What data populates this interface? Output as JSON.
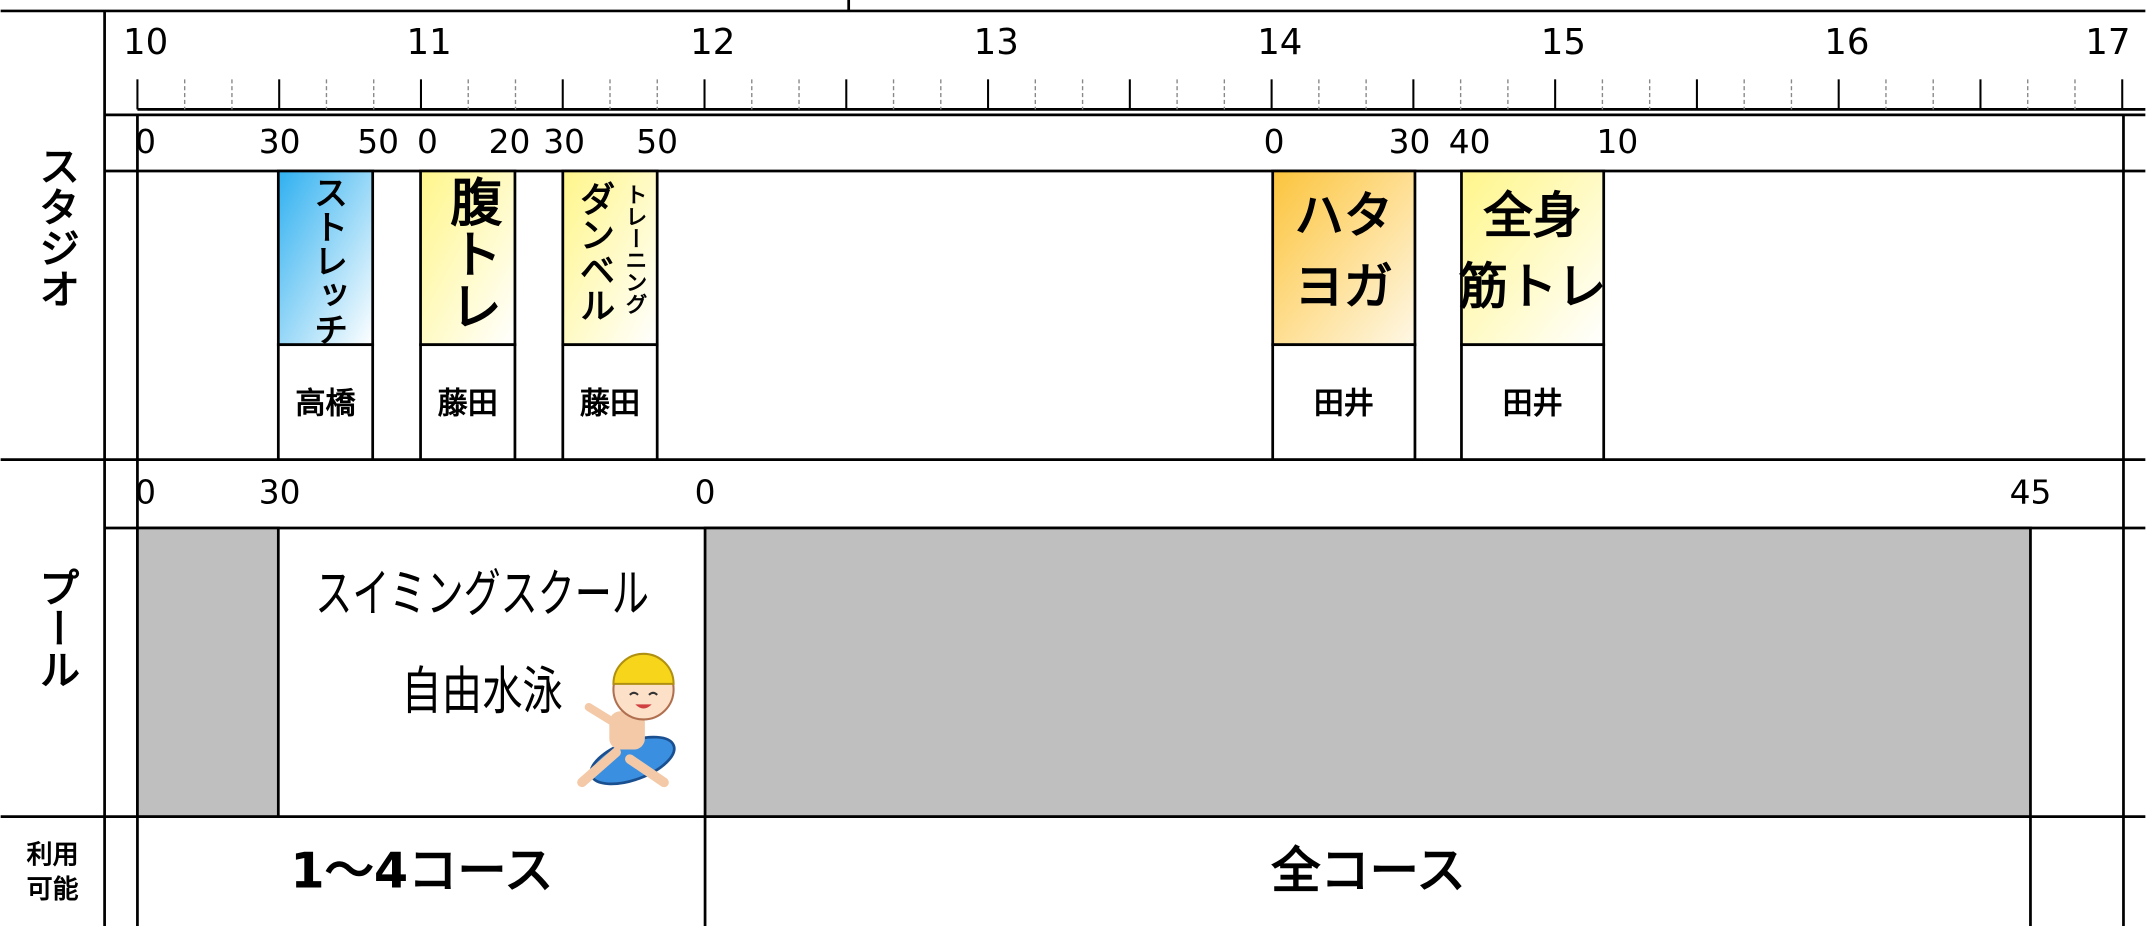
{
  "left_labels": {
    "studio": "スタジオ",
    "pool": "プール",
    "usage": [
      "利用",
      "可能"
    ]
  },
  "hours": [
    "10",
    "11",
    "12",
    "13",
    "14",
    "15",
    "16",
    "17"
  ],
  "studio_minutes": [
    "0",
    "30",
    "50",
    "0",
    "20",
    "30",
    "50",
    "0",
    "30",
    "40",
    "10"
  ],
  "studio_classes": [
    {
      "name": "ストレッチ",
      "instructor": "高橋"
    },
    {
      "name": "腹トレ",
      "instructor": "藤田"
    },
    {
      "name": "ダンベル",
      "sub": "トレーニング",
      "instructor": "藤田"
    },
    {
      "name": [
        "ハタ",
        "ヨガ"
      ],
      "instructor": "田井"
    },
    {
      "name": [
        "全身",
        "筋トレ"
      ],
      "instructor": "田井"
    }
  ],
  "pool_minutes": [
    "0",
    "30",
    "0",
    "45"
  ],
  "pool_program": [
    "スイミングスクール",
    "自由水泳"
  ],
  "usage": [
    "1～4コース",
    "全コース"
  ]
}
